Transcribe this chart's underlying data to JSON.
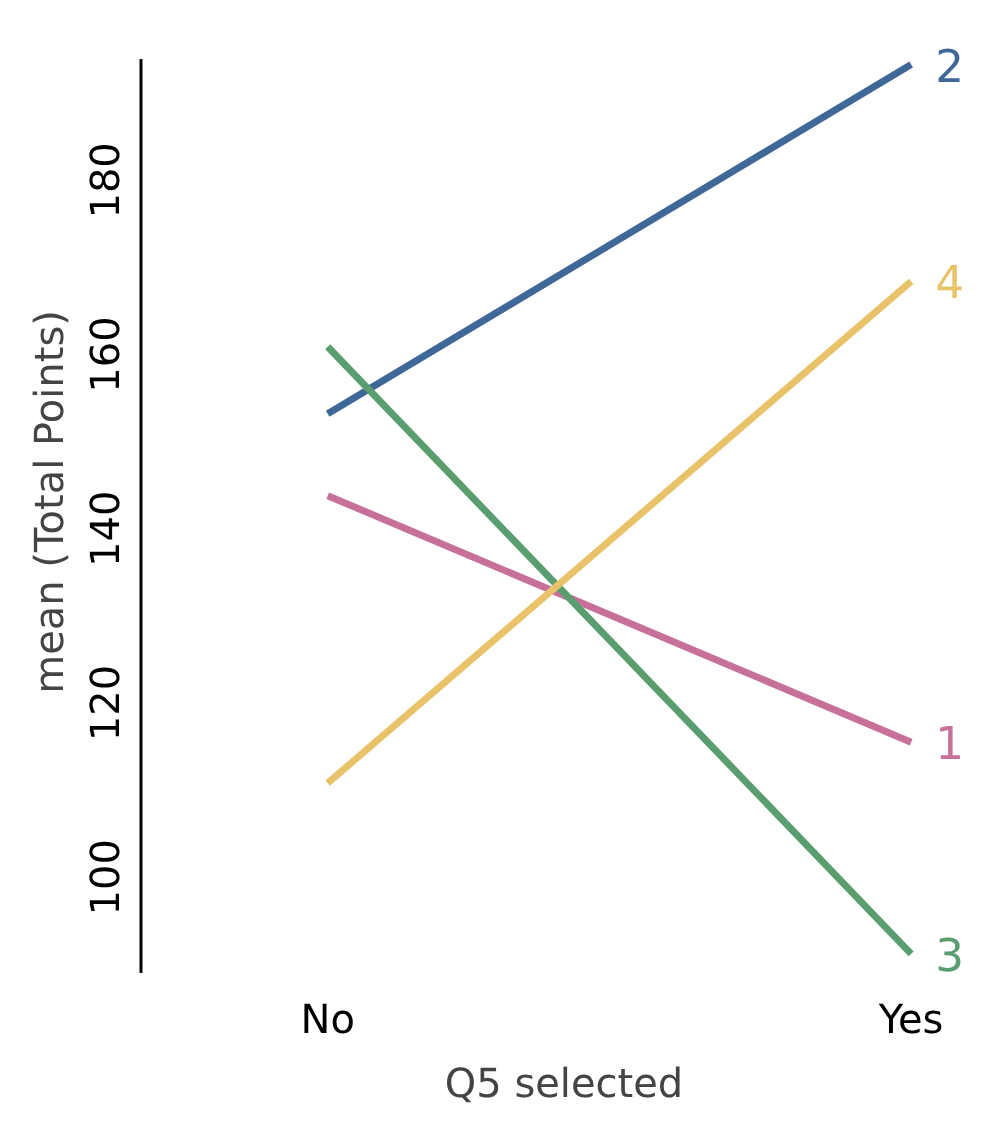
{
  "chart_data": {
    "type": "line",
    "xlabel": "Q5 selected",
    "ylabel": "mean (Total Points)",
    "categories": [
      "No",
      "Yes"
    ],
    "series": [
      {
        "name": "1",
        "color": "#c7709a",
        "values": [
          143.8,
          115.5
        ]
      },
      {
        "name": "2",
        "color": "#3f6899",
        "values": [
          153.2,
          193.3
        ]
      },
      {
        "name": "3",
        "color": "#5a9e6f",
        "values": [
          160.9,
          91.2
        ]
      },
      {
        "name": "4",
        "color": "#e8c36a",
        "values": [
          110.8,
          168.4
        ]
      }
    ],
    "ylim": [
      89,
      194
    ],
    "yticks": [
      100,
      120,
      140,
      160,
      180
    ],
    "grid": false,
    "legend": false
  }
}
